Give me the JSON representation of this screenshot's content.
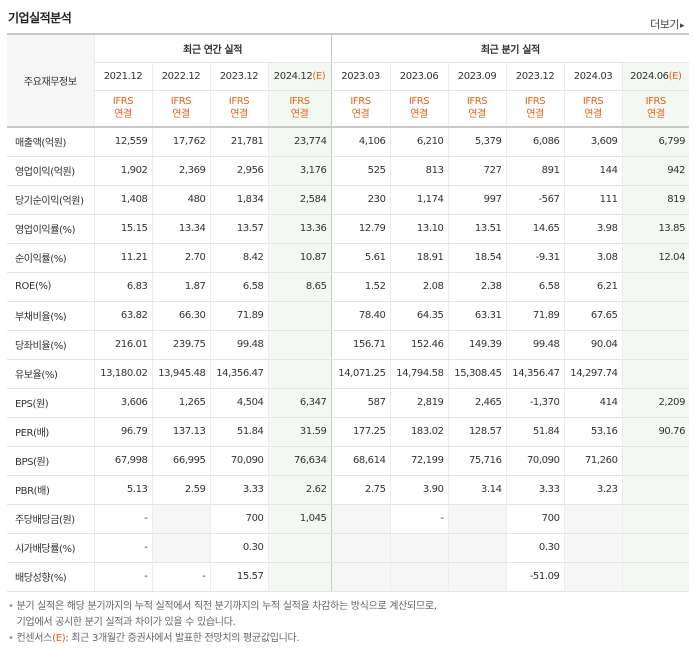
{
  "title": "기업실적분석",
  "more_label": "더보기",
  "more_arrow": "▸",
  "row_header_label": "주요재무정보",
  "annual_group": "최근 연간 실적",
  "quarter_group": "최근 분기 실적",
  "annual_periods": [
    "2021.12",
    "2022.12",
    "2023.12",
    "2024.12"
  ],
  "quarter_periods": [
    "2023.03",
    "2023.06",
    "2023.09",
    "2023.12",
    "2024.03",
    "2024.06"
  ],
  "estimate_mark": "(E)",
  "ifrs_top": "IFRS",
  "ifrs_bottom": "연결",
  "rows": [
    {
      "label": "매출액(억원)",
      "annual": [
        "12,559",
        "17,762",
        "21,781",
        "23,774"
      ],
      "quarter": [
        "4,106",
        "6,210",
        "5,379",
        "6,086",
        "3,609",
        "6,799"
      ]
    },
    {
      "label": "영업이익(억원)",
      "annual": [
        "1,902",
        "2,369",
        "2,956",
        "3,176"
      ],
      "quarter": [
        "525",
        "813",
        "727",
        "891",
        "144",
        "942"
      ]
    },
    {
      "label": "당기순이익(억원)",
      "annual": [
        "1,408",
        "480",
        "1,834",
        "2,584"
      ],
      "quarter": [
        "230",
        "1,174",
        "997",
        "-567",
        "111",
        "819"
      ]
    },
    {
      "label": "영업이익률(%)",
      "annual": [
        "15.15",
        "13.34",
        "13.57",
        "13.36"
      ],
      "quarter": [
        "12.79",
        "13.10",
        "13.51",
        "14.65",
        "3.98",
        "13.85"
      ]
    },
    {
      "label": "순이익률(%)",
      "annual": [
        "11.21",
        "2.70",
        "8.42",
        "10.87"
      ],
      "quarter": [
        "5.61",
        "18.91",
        "18.54",
        "-9.31",
        "3.08",
        "12.04"
      ]
    },
    {
      "label": "ROE(%)",
      "annual": [
        "6.83",
        "1.87",
        "6.58",
        "8.65"
      ],
      "quarter": [
        "1.52",
        "2.08",
        "2.38",
        "6.58",
        "6.21",
        ""
      ]
    },
    {
      "label": "부채비율(%)",
      "annual": [
        "63.82",
        "66.30",
        "71.89",
        ""
      ],
      "quarter": [
        "78.40",
        "64.35",
        "63.31",
        "71.89",
        "67.65",
        ""
      ]
    },
    {
      "label": "당좌비율(%)",
      "annual": [
        "216.01",
        "239.75",
        "99.48",
        ""
      ],
      "quarter": [
        "156.71",
        "152.46",
        "149.39",
        "99.48",
        "90.04",
        ""
      ]
    },
    {
      "label": "유보율(%)",
      "annual": [
        "13,180.02",
        "13,945.48",
        "14,356.47",
        ""
      ],
      "quarter": [
        "14,071.25",
        "14,794.58",
        "15,308.45",
        "14,356.47",
        "14,297.74",
        ""
      ]
    },
    {
      "label": "EPS(원)",
      "annual": [
        "3,606",
        "1,265",
        "4,504",
        "6,347"
      ],
      "quarter": [
        "587",
        "2,819",
        "2,465",
        "-1,370",
        "414",
        "2,209"
      ]
    },
    {
      "label": "PER(배)",
      "annual": [
        "96.79",
        "137.13",
        "51.84",
        "31.59"
      ],
      "quarter": [
        "177.25",
        "183.02",
        "128.57",
        "51.84",
        "53.16",
        "90.76"
      ]
    },
    {
      "label": "BPS(원)",
      "annual": [
        "67,998",
        "66,995",
        "70,090",
        "76,634"
      ],
      "quarter": [
        "68,614",
        "72,199",
        "75,716",
        "70,090",
        "71,260",
        ""
      ]
    },
    {
      "label": "PBR(배)",
      "annual": [
        "5.13",
        "2.59",
        "3.33",
        "2.62"
      ],
      "quarter": [
        "2.75",
        "3.90",
        "3.14",
        "3.33",
        "3.23",
        ""
      ]
    },
    {
      "label": "주당배당금(원)",
      "annual": [
        "-",
        "",
        "700",
        "1,045"
      ],
      "quarter": [
        "",
        "-",
        "",
        "700",
        "",
        ""
      ]
    },
    {
      "label": "시가배당률(%)",
      "annual": [
        "-",
        "",
        "0.30",
        ""
      ],
      "quarter": [
        "",
        "",
        "",
        "0.30",
        "",
        ""
      ]
    },
    {
      "label": "배당성향(%)",
      "annual": [
        "-",
        "-",
        "15.57",
        ""
      ],
      "quarter": [
        "",
        "",
        "",
        "-51.09",
        "",
        ""
      ]
    }
  ],
  "notes": [
    "분기 실적은 해당 분기까지의 누적 실적에서 직전 분기까지의 누적 실적을 차감하는 방식으로 계산되므로,",
    "기업에서 공시한 분기 실적과 차이가 있을 수 있습니다.",
    "컨센서스",
    "(E)",
    ": 최근 3개월간 증권사에서 발표한 전망치의 평균값입니다."
  ],
  "colors": {
    "estimate_bg": "#f3f9f2",
    "ifrs": "#e4621c",
    "negative": "#e01a1a"
  }
}
